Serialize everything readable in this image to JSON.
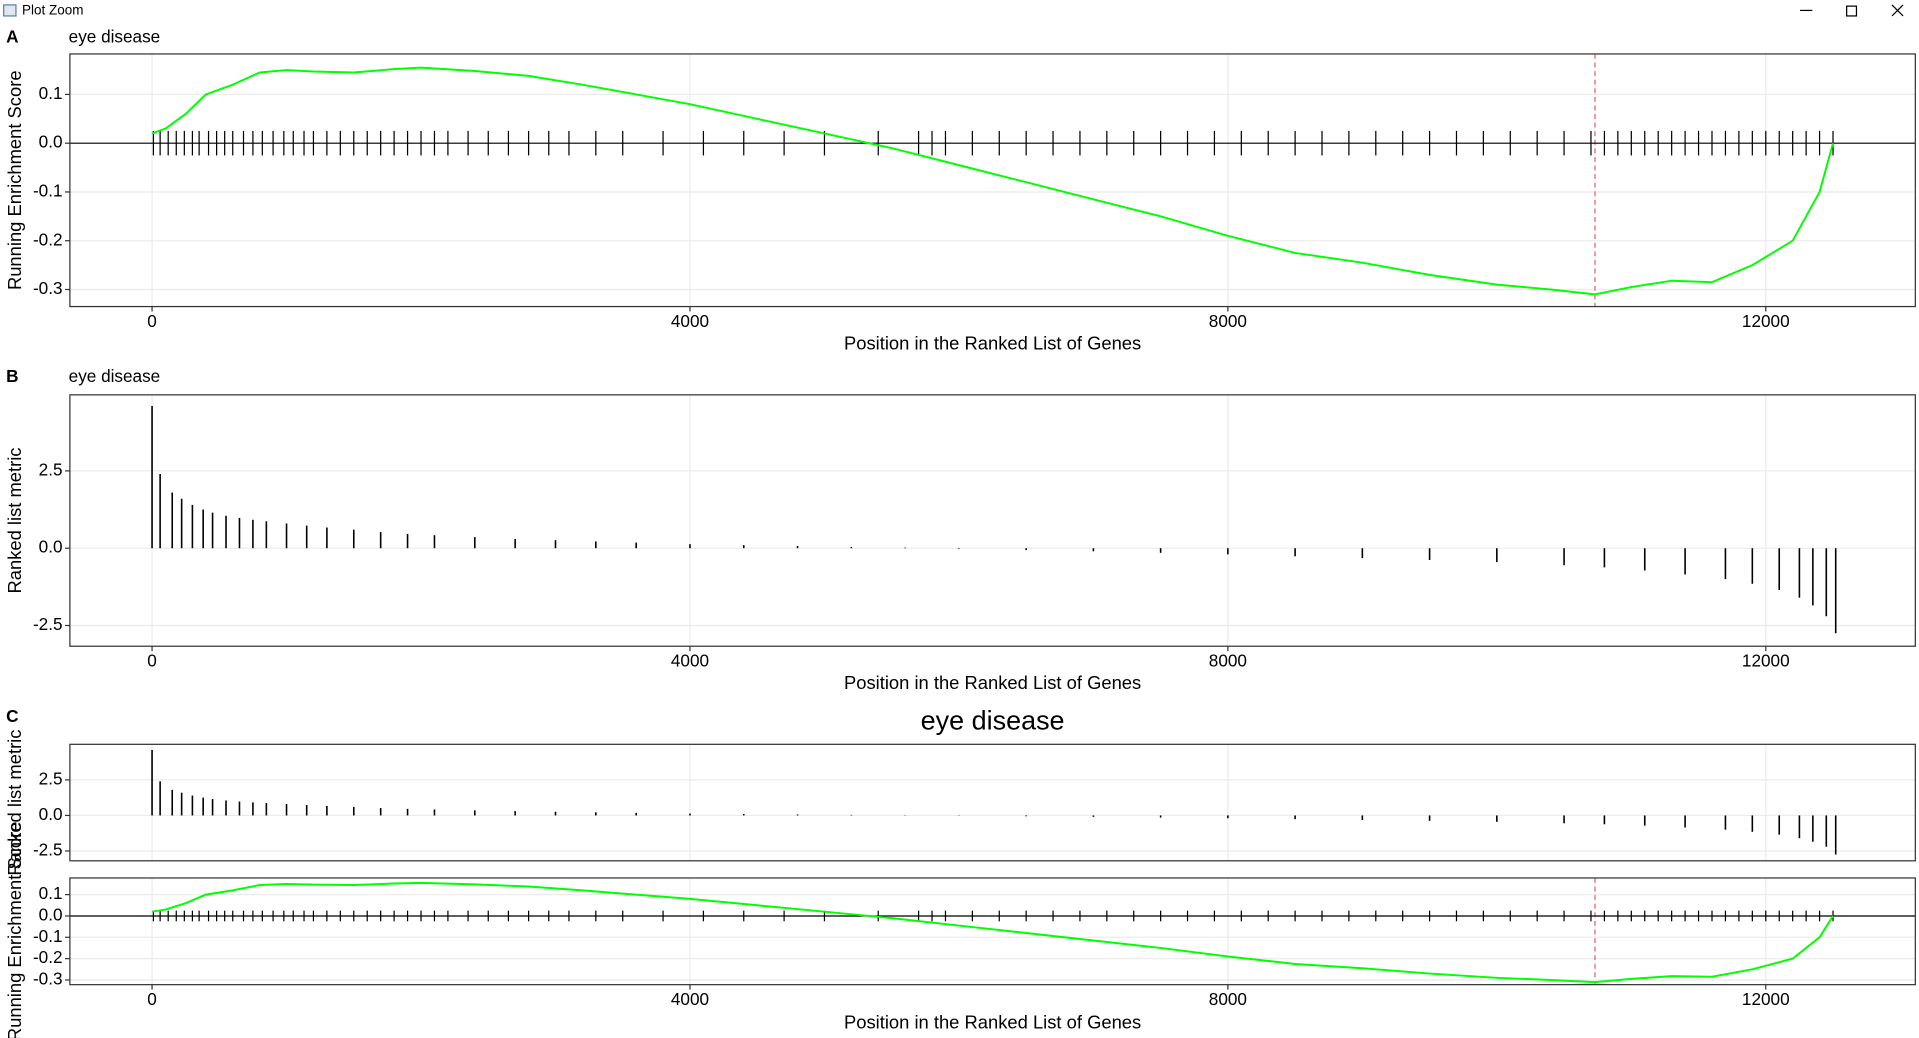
{
  "window": {
    "title": "Plot Zoom"
  },
  "chart_data": [
    {
      "type": "line",
      "panel_label": "A",
      "title": "eye disease",
      "x_label": "Position in the Ranked List of Genes",
      "y_label": "Running Enrichment Score",
      "xlim": [
        -611,
        13112
      ],
      "xticks": [
        0,
        4000,
        8000,
        12000
      ],
      "ylim": [
        -0.335,
        0.183
      ],
      "yticks": [
        -0.3,
        -0.2,
        -0.1,
        {
          "value": 0,
          "label": "0.0"
        },
        0.1
      ],
      "grid": true,
      "color": "#00ff00",
      "hit_color": "#000000",
      "hline": 0,
      "vline": 10730,
      "vline_color": "#e06060",
      "x": [
        0,
        100,
        250,
        400,
        600,
        800,
        1000,
        1200,
        1500,
        1800,
        2000,
        2400,
        2800,
        3200,
        3600,
        4000,
        4500,
        5000,
        5500,
        6000,
        6500,
        7000,
        7500,
        8000,
        8500,
        9000,
        9500,
        10000,
        10400,
        10730,
        11000,
        11300,
        11600,
        11900,
        12200,
        12400,
        12500
      ],
      "values": [
        0.02,
        0.03,
        0.06,
        0.1,
        0.12,
        0.145,
        0.15,
        0.147,
        0.145,
        0.152,
        0.155,
        0.148,
        0.138,
        0.12,
        0.1,
        0.08,
        0.05,
        0.02,
        -0.01,
        -0.045,
        -0.08,
        -0.115,
        -0.15,
        -0.19,
        -0.225,
        -0.245,
        -0.27,
        -0.29,
        -0.3,
        -0.31,
        -0.295,
        -0.282,
        -0.285,
        -0.25,
        -0.2,
        -0.1,
        0.0
      ],
      "hits": [
        10,
        60,
        120,
        180,
        240,
        300,
        350,
        420,
        480,
        540,
        600,
        680,
        750,
        820,
        900,
        980,
        1050,
        1130,
        1200,
        1300,
        1400,
        1500,
        1600,
        1700,
        1800,
        1900,
        2000,
        2100,
        2200,
        2350,
        2500,
        2650,
        2800,
        2950,
        3100,
        3300,
        3500,
        3800,
        4100,
        4400,
        4700,
        5000,
        5400,
        5700,
        5800,
        5900,
        6100,
        6300,
        6500,
        6700,
        6900,
        7100,
        7300,
        7500,
        7700,
        7900,
        8100,
        8300,
        8500,
        8700,
        8900,
        9100,
        9300,
        9500,
        9700,
        9900,
        10100,
        10300,
        10500,
        10700,
        10800,
        10900,
        11000,
        11100,
        11200,
        11300,
        11400,
        11500,
        11600,
        11700,
        11800,
        11900,
        12000,
        12100,
        12200,
        12300,
        12400,
        12500
      ]
    },
    {
      "type": "bar",
      "panel_label": "B",
      "title": "eye disease",
      "x_label": "Position in the Ranked List of Genes",
      "y_label": "Ranked list metric",
      "xlim": [
        -611,
        13112
      ],
      "xticks": [
        0,
        4000,
        8000,
        12000
      ],
      "ylim": [
        -3.17,
        4.96
      ],
      "yticks": [
        -2.5,
        {
          "value": 0,
          "label": "0.0"
        },
        2.5
      ],
      "grid": true,
      "color": "#000000",
      "x": [
        0,
        60,
        150,
        220,
        300,
        380,
        450,
        550,
        650,
        750,
        850,
        1000,
        1150,
        1300,
        1500,
        1700,
        1900,
        2100,
        2400,
        2700,
        3000,
        3300,
        3600,
        4000,
        4400,
        4800,
        5200,
        5600,
        6000,
        6500,
        7000,
        7500,
        8000,
        8500,
        9000,
        9500,
        10000,
        10500,
        10800,
        11100,
        11400,
        11700,
        11900,
        12100,
        12250,
        12350,
        12450,
        12520
      ],
      "values": [
        4.6,
        2.4,
        1.8,
        1.6,
        1.4,
        1.25,
        1.15,
        1.05,
        0.98,
        0.92,
        0.87,
        0.8,
        0.73,
        0.67,
        0.6,
        0.52,
        0.46,
        0.42,
        0.36,
        0.3,
        0.26,
        0.22,
        0.18,
        0.13,
        0.1,
        0.07,
        0.04,
        0.02,
        -0.02,
        -0.06,
        -0.1,
        -0.15,
        -0.2,
        -0.26,
        -0.32,
        -0.38,
        -0.45,
        -0.55,
        -0.62,
        -0.72,
        -0.85,
        -1.0,
        -1.15,
        -1.35,
        -1.6,
        -1.85,
        -2.2,
        -2.75
      ]
    },
    {
      "type": "gsea",
      "panel_label": "C",
      "title": "eye disease",
      "x_label": "Position in the Ranked List of Genes",
      "xlim": [
        -611,
        13112
      ],
      "xticks": [
        0,
        4000,
        8000,
        12000
      ],
      "grid": true,
      "panels": [
        {
          "type": "bar",
          "y_label": "Ranked list metric",
          "ylim": [
            -3.19,
            5.0
          ],
          "yticks": [
            -2.5,
            {
              "value": 0,
              "label": "0.0"
            },
            2.5
          ],
          "color": "#000000",
          "x": [
            0,
            60,
            150,
            220,
            300,
            380,
            450,
            550,
            650,
            750,
            850,
            1000,
            1150,
            1300,
            1500,
            1700,
            1900,
            2100,
            2400,
            2700,
            3000,
            3300,
            3600,
            4000,
            4400,
            4800,
            5200,
            5600,
            6000,
            6500,
            7000,
            7500,
            8000,
            8500,
            9000,
            9500,
            10000,
            10500,
            10800,
            11100,
            11400,
            11700,
            11900,
            12100,
            12250,
            12350,
            12450,
            12520
          ],
          "values": [
            4.6,
            2.4,
            1.8,
            1.6,
            1.4,
            1.25,
            1.15,
            1.05,
            0.98,
            0.92,
            0.87,
            0.8,
            0.73,
            0.67,
            0.6,
            0.52,
            0.46,
            0.42,
            0.36,
            0.3,
            0.26,
            0.22,
            0.18,
            0.13,
            0.1,
            0.07,
            0.04,
            0.02,
            -0.02,
            -0.06,
            -0.1,
            -0.15,
            -0.2,
            -0.26,
            -0.32,
            -0.38,
            -0.45,
            -0.55,
            -0.62,
            -0.72,
            -0.85,
            -1.0,
            -1.15,
            -1.35,
            -1.6,
            -1.85,
            -2.2,
            -2.75
          ]
        },
        {
          "type": "line",
          "y_label": "Running Enrichment Score",
          "ylim": [
            -0.322,
            0.178
          ],
          "yticks": [
            -0.3,
            -0.2,
            -0.1,
            {
              "value": 0,
              "label": "0.0"
            },
            0.1
          ],
          "color": "#00ff00",
          "hit_color": "#000000",
          "hline": 0,
          "vline": 10730,
          "vline_color": "#e06060",
          "x": [
            0,
            100,
            250,
            400,
            600,
            800,
            1000,
            1200,
            1500,
            1800,
            2000,
            2400,
            2800,
            3200,
            3600,
            4000,
            4500,
            5000,
            5500,
            6000,
            6500,
            7000,
            7500,
            8000,
            8500,
            9000,
            9500,
            10000,
            10400,
            10730,
            11000,
            11300,
            11600,
            11900,
            12200,
            12400,
            12500
          ],
          "values": [
            0.02,
            0.03,
            0.06,
            0.1,
            0.12,
            0.145,
            0.15,
            0.147,
            0.145,
            0.152,
            0.155,
            0.148,
            0.138,
            0.12,
            0.1,
            0.08,
            0.05,
            0.02,
            -0.01,
            -0.045,
            -0.08,
            -0.115,
            -0.15,
            -0.19,
            -0.225,
            -0.245,
            -0.27,
            -0.29,
            -0.3,
            -0.31,
            -0.295,
            -0.282,
            -0.285,
            -0.25,
            -0.2,
            -0.1,
            0.0
          ],
          "hits": [
            10,
            60,
            120,
            180,
            240,
            300,
            350,
            420,
            480,
            540,
            600,
            680,
            750,
            820,
            900,
            980,
            1050,
            1130,
            1200,
            1300,
            1400,
            1500,
            1600,
            1700,
            1800,
            1900,
            2000,
            2100,
            2200,
            2350,
            2500,
            2650,
            2800,
            2950,
            3100,
            3300,
            3500,
            3800,
            4100,
            4400,
            4700,
            5000,
            5400,
            5700,
            5800,
            5900,
            6100,
            6300,
            6500,
            6700,
            6900,
            7100,
            7300,
            7500,
            7700,
            7900,
            8100,
            8300,
            8500,
            8700,
            8900,
            9100,
            9300,
            9500,
            9700,
            9900,
            10100,
            10300,
            10500,
            10700,
            10800,
            10900,
            11000,
            11100,
            11200,
            11300,
            11400,
            11500,
            11600,
            11700,
            11800,
            11900,
            12000,
            12100,
            12200,
            12300,
            12400,
            12500
          ]
        }
      ]
    }
  ]
}
